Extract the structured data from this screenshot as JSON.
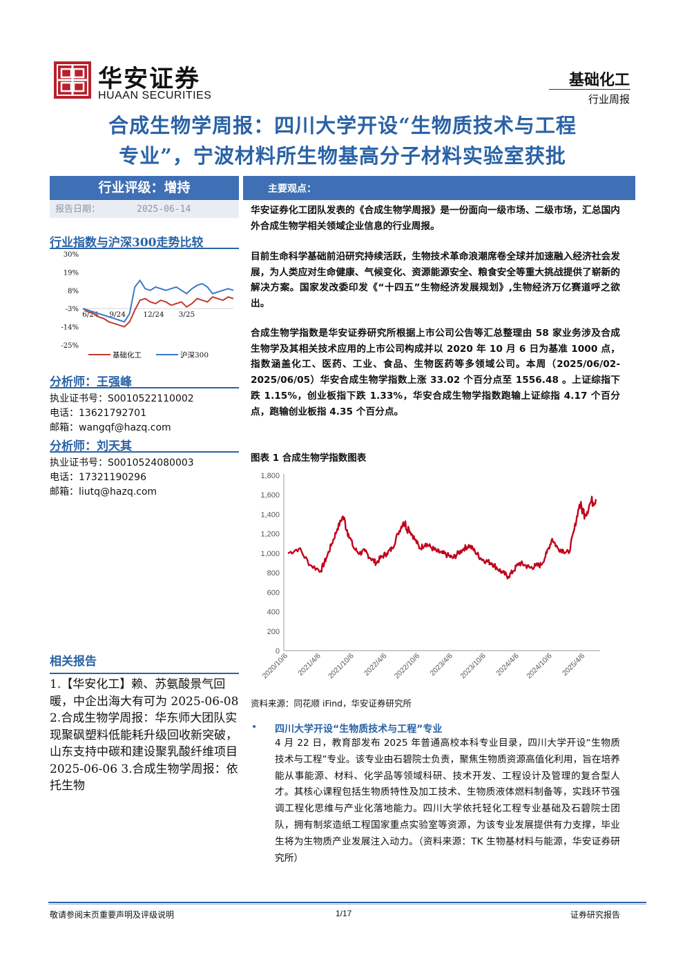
{
  "header": {
    "logo_cn": "华安证券",
    "logo_en": "HUAAN SECURITIES",
    "sector": "基础化工",
    "report_type": "行业周报"
  },
  "title_line1": "合成生物学周报：四川大学开设“生物质技术与工程",
  "title_line2": "专业”，宁波材料所生物基高分子材料实验室获批",
  "left": {
    "rating": "行业评级：增持",
    "date_label": "报告日期：",
    "date_value": "2025-06-14",
    "trend_heading": "行业指数与沪深300走势比较",
    "analyst1_heading": "分析师：王强峰",
    "analyst1_lines": [
      "执业证书号：S0010522110002",
      "电话：13621792701",
      "邮箱：wangqf@hazq.com"
    ],
    "analyst2_heading": "分析师：刘天其",
    "analyst2_lines": [
      "执业证书号：S0010524080003",
      "电话：17321190296",
      "邮箱：liutq@hazq.com"
    ],
    "related_heading": "相关报告",
    "related_text": "1.【华安化工】赖、苏氨酸景气回暖，中企出海大有可为 2025-06-08 2.合成生物学周报：华东师大团队实现聚砜塑料低能耗升级回收新突破，山东支持中碳和建设聚乳酸纤维项目 2025-06-06 3.合成生物学周报：依托生物"
  },
  "right": {
    "main_heading": "主要观点：",
    "para1": "华安证券化工团队发表的《合成生物学周报》是一份面向一级市场、二级市场，汇总国内外合成生物学相关领域企业信息的行业周报。",
    "para2": "目前生命科学基础前沿研究持续活跃，生物技术革命浪潮席卷全球并加速融入经济社会发展，为人类应对生命健康、气候变化、资源能源安全、粮食安全等重大挑战提供了崭新的解决方案。国家发改委印发《“十四五”生物经济发展规划》,生物经济万亿赛道呼之欲出。",
    "para3": "合成生物学指数是华安证券研究所根据上市公司公告等汇总整理由 58 家业务涉及合成生物学及其相关技术应用的上市公司构成并以 2020 年 10 月 6 日为基准 1000 点，指数涵盖化工、医药、工业、食品、生物医药等多领域公司。本周（2025/06/02-2025/06/05）华安合成生物学指数上涨 33.02 个百分点至 1556.48 。上证综指下跌 1.15%，创业板指下跌 1.33%，华安合成生物学指数跑输上证综指 4.17 个百分点，跑输创业板指 4.35 个百分点。",
    "figure_title": "图表 1 合成生物学指数图表",
    "source": "资料来源：同花顺 iFind，华安证券研究所",
    "news_heading": "四川大学开设“生物质技术与工程”专业",
    "news_body": "4 月 22 日，教育部发布 2025 年普通高校本科专业目录，四川大学开设“生物质技术与工程”专业。该专业由石碧院士负责，聚焦生物质资源高值化利用，旨在培养能从事能源、材料、化学品等领域科研、技术开发、工程设计及管理的复合型人才。其核心课程包括生物质特性及加工技术、生物质液体燃料制备等，实践环节强调工程化思维与产业化落地能力。四川大学依托轻化工程专业基础及石碧院士团队，拥有制浆造纸工程国家重点实验室等资源，为该专业发展提供有力支撑，毕业生将为生物质产业发展注入动力。（资料来源：TK 生物基材料与能源，华安证券研究所）"
  },
  "footer": {
    "left": "敬请参阅末页重要声明及评级说明",
    "center": "1/17",
    "right": "证券研究报告"
  },
  "chart_data": [
    {
      "type": "line",
      "title": "行业指数与沪深300走势比较",
      "y_ticks": [
        "30%",
        "19%",
        "8%",
        "-3%",
        "-14%",
        "-25%"
      ],
      "x_ticks": [
        "6/24",
        "9/24",
        "12/24",
        "3/25"
      ],
      "ylim": [
        -25,
        30
      ],
      "legend_position": "bottom",
      "colors": {
        "基础化工": "#c0392b",
        "沪深300": "#3a78c8"
      },
      "series": [
        {
          "name": "基础化工",
          "values": [
            -3,
            -5,
            -6,
            -8,
            -9,
            -11,
            -12,
            -13,
            -14,
            -11,
            -4,
            2,
            3,
            1,
            0,
            2,
            1,
            -1,
            0,
            1,
            -2,
            0,
            3,
            2,
            1,
            4,
            3,
            2,
            4,
            3
          ]
        },
        {
          "name": "沪深300",
          "values": [
            -3,
            -4,
            -5,
            -6,
            -7,
            -8,
            -9,
            -10,
            -11,
            -6,
            10,
            14,
            9,
            8,
            10,
            9,
            8,
            9,
            10,
            8,
            6,
            9,
            11,
            12,
            10,
            6,
            7,
            8,
            9,
            8
          ]
        }
      ]
    },
    {
      "type": "line",
      "title": "图表 1 合成生物学指数图表",
      "y_ticks": [
        "1,800",
        "1,600",
        "1,400",
        "1,200",
        "1,000",
        "800",
        "600",
        "400",
        "200",
        "0"
      ],
      "x_ticks": [
        "2020/10/6",
        "2021/4/6",
        "2021/10/6",
        "2022/4/6",
        "2022/10/6",
        "2023/4/6",
        "2023/10/6",
        "2024/4/6",
        "2024/10/6",
        "2025/4/6"
      ],
      "ylim": [
        0,
        1800
      ],
      "color": "#c0001a",
      "x": [
        "2020/10/6",
        "2020/12/6",
        "2021/2/6",
        "2021/4/6",
        "2021/5/6",
        "2021/6/6",
        "2021/7/6",
        "2021/8/6",
        "2021/9/6",
        "2021/10/6",
        "2021/11/6",
        "2021/12/6",
        "2022/1/6",
        "2022/2/6",
        "2022/3/6",
        "2022/4/6",
        "2022/5/6",
        "2022/6/6",
        "2022/7/6",
        "2022/8/6",
        "2022/9/6",
        "2022/10/6",
        "2022/11/6",
        "2022/12/6",
        "2023/1/6",
        "2023/2/6",
        "2023/3/6",
        "2023/4/6",
        "2023/5/6",
        "2023/6/6",
        "2023/7/6",
        "2023/8/6",
        "2023/9/6",
        "2023/10/6",
        "2023/11/6",
        "2023/12/6",
        "2024/1/6",
        "2024/2/6",
        "2024/3/6",
        "2024/4/6",
        "2024/5/6",
        "2024/6/6",
        "2024/7/6",
        "2024/8/6",
        "2024/9/6",
        "2024/10/6",
        "2024/11/6",
        "2024/12/6",
        "2025/1/6",
        "2025/2/6",
        "2025/3/6",
        "2025/4/6",
        "2025/5/6",
        "2025/6/5"
      ],
      "values": [
        1000,
        1050,
        880,
        820,
        950,
        1100,
        1250,
        1380,
        1200,
        1050,
        1000,
        1020,
        950,
        900,
        960,
        1000,
        1050,
        1200,
        1320,
        1250,
        1150,
        1050,
        1100,
        1060,
        1020,
        1000,
        980,
        950,
        1000,
        1050,
        1080,
        1020,
        950,
        920,
        900,
        850,
        800,
        760,
        820,
        900,
        880,
        850,
        870,
        880,
        1000,
        1150,
        1050,
        1030,
        1000,
        1250,
        1500,
        1400,
        1520,
        1556.48
      ]
    }
  ]
}
